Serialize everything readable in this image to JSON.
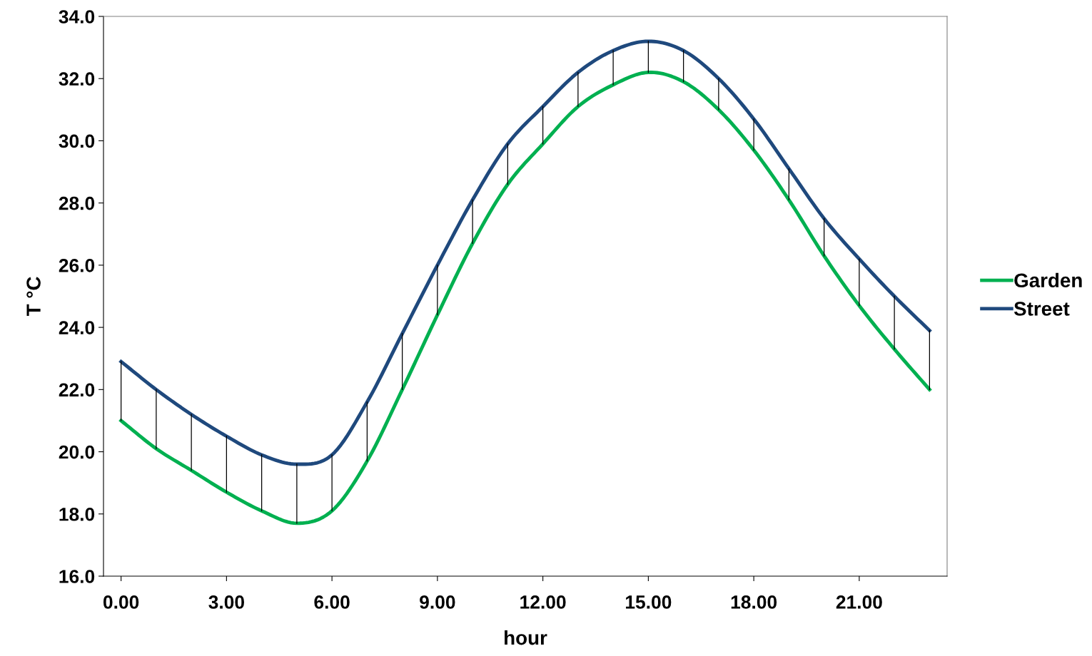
{
  "chart_data": {
    "type": "line",
    "xlabel": "hour",
    "ylabel": "T °C",
    "x": [
      0,
      1,
      2,
      3,
      4,
      5,
      6,
      7,
      8,
      9,
      10,
      11,
      12,
      13,
      14,
      15,
      16,
      17,
      18,
      19,
      20,
      21,
      22,
      23
    ],
    "series": [
      {
        "name": "Garden",
        "color": "#00b050",
        "values": [
          21.0,
          20.1,
          19.4,
          18.7,
          18.1,
          17.7,
          18.1,
          19.7,
          22.0,
          24.4,
          26.7,
          28.6,
          29.9,
          31.1,
          31.8,
          32.2,
          31.9,
          31.0,
          29.7,
          28.1,
          26.3,
          24.7,
          23.3,
          22.0
        ]
      },
      {
        "name": "Street",
        "color": "#1f497d",
        "values": [
          22.9,
          22.0,
          21.2,
          20.5,
          19.9,
          19.6,
          19.9,
          21.6,
          23.8,
          26.0,
          28.1,
          29.9,
          31.1,
          32.2,
          32.9,
          33.2,
          32.9,
          32.0,
          30.7,
          29.1,
          27.5,
          26.2,
          25.0,
          23.9
        ],
        "errors": [
          [
            21.0,
            22.9
          ],
          [
            20.1,
            22.0
          ],
          [
            19.4,
            21.2
          ],
          [
            18.7,
            20.5
          ],
          [
            18.1,
            19.9
          ],
          [
            17.7,
            19.6
          ],
          [
            18.1,
            19.9
          ],
          [
            19.7,
            21.6
          ],
          [
            22.0,
            23.8
          ],
          [
            24.4,
            26.0
          ],
          [
            26.7,
            28.1
          ],
          [
            28.6,
            29.9
          ],
          [
            29.9,
            31.1
          ],
          [
            31.1,
            32.2
          ],
          [
            31.8,
            32.9
          ],
          [
            32.2,
            33.2
          ],
          [
            31.9,
            32.9
          ],
          [
            31.0,
            32.0
          ],
          [
            29.7,
            30.7
          ],
          [
            28.1,
            29.1
          ],
          [
            26.3,
            27.5
          ],
          [
            24.7,
            26.2
          ],
          [
            23.3,
            25.0
          ],
          [
            22.0,
            23.9
          ]
        ]
      }
    ],
    "xlim": [
      -0.5,
      23.5
    ],
    "xticks": [
      {
        "value": 0,
        "label": "0.00"
      },
      {
        "value": 3,
        "label": "3.00"
      },
      {
        "value": 6,
        "label": "6.00"
      },
      {
        "value": 9,
        "label": "9.00"
      },
      {
        "value": 12,
        "label": "12.00"
      },
      {
        "value": 15,
        "label": "15.00"
      },
      {
        "value": 18,
        "label": "18.00"
      },
      {
        "value": 21,
        "label": "21.00"
      }
    ],
    "ylim": [
      16,
      34
    ],
    "yticks": [
      {
        "value": 16,
        "label": "16.0"
      },
      {
        "value": 18,
        "label": "18.0"
      },
      {
        "value": 20,
        "label": "20.0"
      },
      {
        "value": 22,
        "label": "22.0"
      },
      {
        "value": 24,
        "label": "24.0"
      },
      {
        "value": 26,
        "label": "26.0"
      },
      {
        "value": 28,
        "label": "28.0"
      },
      {
        "value": 30,
        "label": "30.0"
      },
      {
        "value": 32,
        "label": "32.0"
      },
      {
        "value": 34,
        "label": "34.0"
      }
    ],
    "grid": false,
    "legend": "right",
    "marker": "none",
    "line_style": "solid"
  }
}
